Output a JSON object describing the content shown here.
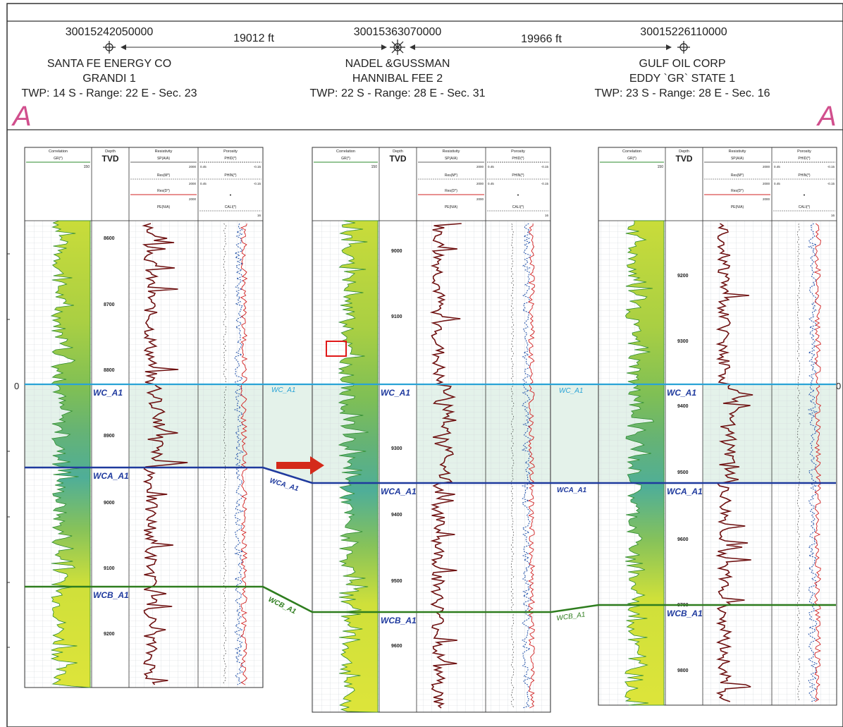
{
  "section_label_left": "A",
  "section_label_right": "A",
  "scale_zero_left": "0",
  "scale_zero_right": "0",
  "distances": [
    "19012 ft",
    "19966 ft"
  ],
  "wells": [
    {
      "api": "30015242050000",
      "operator": "SANTA FE ENERGY CO",
      "lease": "GRANDI 1",
      "location": "TWP: 14  S - Range: 22 E - Sec. 23",
      "symbol": "dry-hole-icon",
      "depths": [
        "8600",
        "8700",
        "8800",
        "8900",
        "9000",
        "9100",
        "9200"
      ],
      "tops": [
        "WC_A1",
        "WCA_A1",
        "WCB_A1"
      ]
    },
    {
      "api": "30015363070000",
      "operator": "NADEL &GUSSMAN",
      "lease": "HANNIBAL FEE 2",
      "location": "TWP: 22  S - Range: 28 E - Sec. 31",
      "symbol": "oil-gas-well-icon",
      "depths": [
        "9000",
        "9100",
        "9300",
        "9400",
        "9500",
        "9600"
      ],
      "tops": [
        "WC_A1",
        "WCA_A1",
        "WCB_A1"
      ]
    },
    {
      "api": "30015226110000",
      "operator": "GULF OIL CORP",
      "lease": "EDDY `GR` STATE 1",
      "location": "TWP: 23  S - Range: 28 E - Sec. 16",
      "symbol": "dry-hole-icon",
      "depths": [
        "9200",
        "9300",
        "9400",
        "9500",
        "9600",
        "9700",
        "9800"
      ],
      "tops": [
        "WC_A1",
        "WCA_A1",
        "WCB_A1"
      ]
    }
  ],
  "track_headers": {
    "correlation": "Correlation",
    "gr": "GR(*)",
    "gr_scale": "150",
    "depth": "Depth",
    "tvd": "TVD",
    "resistivity": "Resistivity",
    "porosity": "Porosity",
    "sp": "SP(A/A)",
    "phid": "PHID(*)",
    "resm": "Res(M*)",
    "phin": "PHIN(*)",
    "res_scale": "2000",
    "por_scale_a": "0.45",
    "por_scale_b": "-0.15",
    "resd": "Res(D*)",
    "pe": "PE(N/A)",
    "cali": "CALI(*)",
    "cali_scale": "16"
  },
  "correlation_labels": [
    "WC_A1",
    "WCA_A1",
    "WCB_A1",
    "WC_A1",
    "WCA_A1",
    "WCB_A1"
  ],
  "colors": {
    "wc_top": "#29a3d6",
    "wca_top": "#1f3a9e",
    "wcb_top": "#2e7d1e",
    "zone_fill": "#dff0e6",
    "resistivity": "#6e1010",
    "porosity": "#1f4fa8",
    "density": "#d22020",
    "arrow": "#d42a1a",
    "label_pink": "#d14f8d"
  }
}
